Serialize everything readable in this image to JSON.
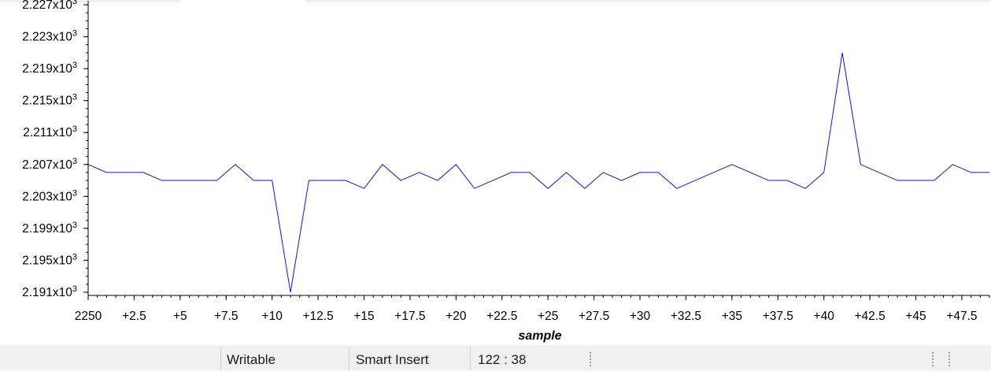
{
  "chart_data": {
    "type": "line",
    "xlabel": "sample",
    "ylabel": "",
    "x_ticks": [
      "2250",
      "+2.5",
      "+5",
      "+7.5",
      "+10",
      "+12.5",
      "+15",
      "+17.5",
      "+20",
      "+22.5",
      "+25",
      "+27.5",
      "+30",
      "+32.5",
      "+35",
      "+37.5",
      "+40",
      "+42.5",
      "+45",
      "+47.5"
    ],
    "x_tick_values": [
      0,
      2.5,
      5,
      7.5,
      10,
      12.5,
      15,
      17.5,
      20,
      22.5,
      25,
      27.5,
      30,
      32.5,
      35,
      37.5,
      40,
      42.5,
      45,
      47.5
    ],
    "y_ticks": [
      {
        "value": 2191,
        "mant": "2.191x10",
        "exp": "3"
      },
      {
        "value": 2195,
        "mant": "2.195x10",
        "exp": "3"
      },
      {
        "value": 2199,
        "mant": "2.199x10",
        "exp": "3"
      },
      {
        "value": 2203,
        "mant": "2.203x10",
        "exp": "3"
      },
      {
        "value": 2207,
        "mant": "2.207x10",
        "exp": "3"
      },
      {
        "value": 2211,
        "mant": "2.211x10",
        "exp": "3"
      },
      {
        "value": 2215,
        "mant": "2.215x10",
        "exp": "3"
      },
      {
        "value": 2219,
        "mant": "2.219x10",
        "exp": "3"
      },
      {
        "value": 2223,
        "mant": "2.223x10",
        "exp": "3"
      },
      {
        "value": 2227,
        "mant": "2.227x10",
        "exp": "3"
      }
    ],
    "xlim": [
      0,
      49
    ],
    "ylim": [
      2190.6,
      2227.5
    ],
    "series": [
      {
        "color": "#1414c8",
        "x": [
          0,
          1,
          2,
          3,
          4,
          5,
          6,
          7,
          8,
          9,
          10,
          11,
          12,
          13,
          14,
          15,
          16,
          17,
          18,
          19,
          20,
          21,
          22,
          23,
          24,
          25,
          26,
          27,
          28,
          29,
          30,
          31,
          32,
          33,
          34,
          35,
          36,
          37,
          38,
          39,
          40,
          41,
          42,
          43,
          44,
          45,
          46,
          47,
          48,
          49
        ],
        "y": [
          2207,
          2206,
          2206,
          2206,
          2205,
          2205,
          2205,
          2205,
          2207,
          2205,
          2205,
          2191,
          2205,
          2205,
          2205,
          2204,
          2207,
          2205,
          2206,
          2205,
          2207,
          2204,
          2205,
          2206,
          2206,
          2204,
          2206,
          2204,
          2206,
          2205,
          2206,
          2206,
          2204,
          2205,
          2206,
          2207,
          2206,
          2205,
          2205,
          2204,
          2206,
          2221,
          2207,
          2206,
          2205,
          2205,
          2205,
          2207,
          2206,
          2206
        ]
      }
    ]
  },
  "status_bar": {
    "mode": "Writable",
    "insert_mode": "Smart Insert",
    "position": "122 : 38"
  }
}
